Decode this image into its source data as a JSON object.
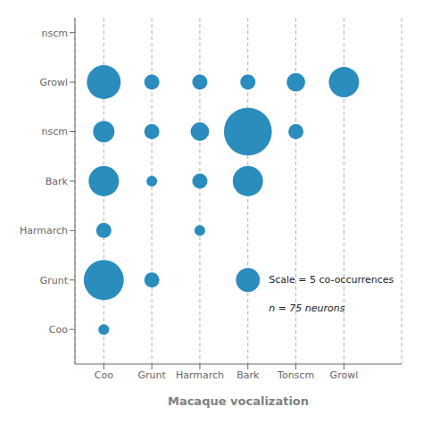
{
  "chart_data": {
    "type": "bubble",
    "xlabel": "Macaque vocalization",
    "xlim": [
      -0.6,
      6.2
    ],
    "xticks": [
      {
        "value": 0,
        "label": "Coo"
      },
      {
        "value": 1,
        "label": "Grunt"
      },
      {
        "value": 2,
        "label": "Harmarch"
      },
      {
        "value": 3,
        "label": "Bark"
      },
      {
        "value": 4,
        "label": "Tonscm"
      },
      {
        "value": 5,
        "label": "Growl"
      }
    ],
    "ylim": [
      0.3,
      7.3
    ],
    "yticks": [
      {
        "value": 1,
        "label": "Coo"
      },
      {
        "value": 2,
        "label": "Grunt"
      },
      {
        "value": 3,
        "label": "Harmarch"
      },
      {
        "value": 4,
        "label": "Bark"
      },
      {
        "value": 5,
        "label": "nscm"
      },
      {
        "value": 6,
        "label": "Growl"
      },
      {
        "value": 7,
        "label": "nscm"
      }
    ],
    "points": [
      {
        "x": 0,
        "y": 6,
        "size": 10
      },
      {
        "x": 0,
        "y": 5,
        "size": 4
      },
      {
        "x": 0,
        "y": 4,
        "size": 8
      },
      {
        "x": 0,
        "y": 3,
        "size": 2
      },
      {
        "x": 0,
        "y": 2,
        "size": 14
      },
      {
        "x": 0,
        "y": 1,
        "size": 1
      },
      {
        "x": 1,
        "y": 6,
        "size": 2
      },
      {
        "x": 1,
        "y": 5,
        "size": 2
      },
      {
        "x": 1,
        "y": 4,
        "size": 1
      },
      {
        "x": 1,
        "y": 2,
        "size": 2
      },
      {
        "x": 2,
        "y": 6,
        "size": 2
      },
      {
        "x": 2,
        "y": 5,
        "size": 3
      },
      {
        "x": 2,
        "y": 4,
        "size": 2
      },
      {
        "x": 2,
        "y": 3,
        "size": 1
      },
      {
        "x": 3,
        "y": 6,
        "size": 2
      },
      {
        "x": 3,
        "y": 5,
        "size": 20
      },
      {
        "x": 3,
        "y": 4,
        "size": 8
      },
      {
        "x": 4,
        "y": 6,
        "size": 3
      },
      {
        "x": 4,
        "y": 5,
        "size": 2
      },
      {
        "x": 5,
        "y": 6,
        "size": 8
      }
    ],
    "color": "#2b8cbe",
    "scale_size": 5,
    "annotations": [
      "Scale = 5 co-occurrences",
      "n = 75 neurons"
    ],
    "grid": "x"
  }
}
